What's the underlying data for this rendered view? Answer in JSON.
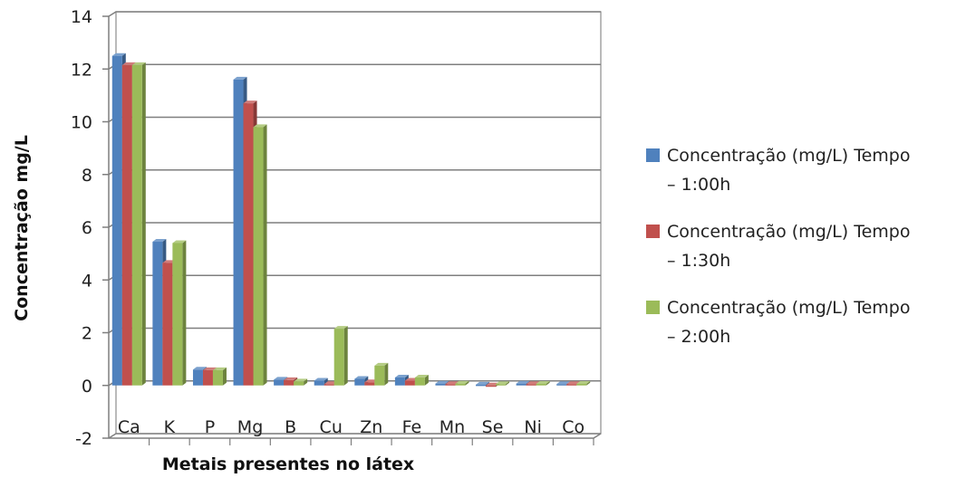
{
  "chart_data": {
    "type": "bar",
    "title": "",
    "xlabel": "Metais presentes no látex",
    "ylabel": "Concentração mg/L",
    "ylim": [
      -2,
      14
    ],
    "yticks": [
      -2,
      0,
      2,
      4,
      6,
      8,
      10,
      12,
      14
    ],
    "grid": true,
    "legend_position": "right",
    "categories": [
      "Ca",
      "K",
      "P",
      "Mg",
      "B",
      "Cu",
      "Zn",
      "Fe",
      "Mn",
      "Se",
      "Ni",
      "Co"
    ],
    "series": [
      {
        "name": "Concentração (mg/L) Tempo – 1:00h",
        "legend_lines": [
          "Concentração (mg/L) Tempo",
          "– 1:00h"
        ],
        "color": "#4F81BD",
        "values": [
          12.5,
          5.45,
          0.6,
          11.6,
          0.22,
          0.18,
          0.25,
          0.3,
          0.07,
          0.03,
          0.07,
          0.05
        ]
      },
      {
        "name": "Concentração (mg/L) Tempo – 1:30h",
        "legend_lines": [
          "Concentração (mg/L) Tempo",
          "– 1:30h"
        ],
        "color": "#C0504D",
        "values": [
          12.15,
          4.65,
          0.58,
          10.7,
          0.2,
          0.05,
          0.12,
          0.18,
          0.05,
          -0.05,
          0.05,
          0.05
        ]
      },
      {
        "name": "Concentração (mg/L) Tempo – 2:00h",
        "legend_lines": [
          "Concentração (mg/L) Tempo",
          "– 2:00h"
        ],
        "color": "#9BBB59",
        "values": [
          12.15,
          5.4,
          0.58,
          9.8,
          0.15,
          2.15,
          0.75,
          0.3,
          0.07,
          0.05,
          0.06,
          0.06
        ]
      }
    ]
  }
}
